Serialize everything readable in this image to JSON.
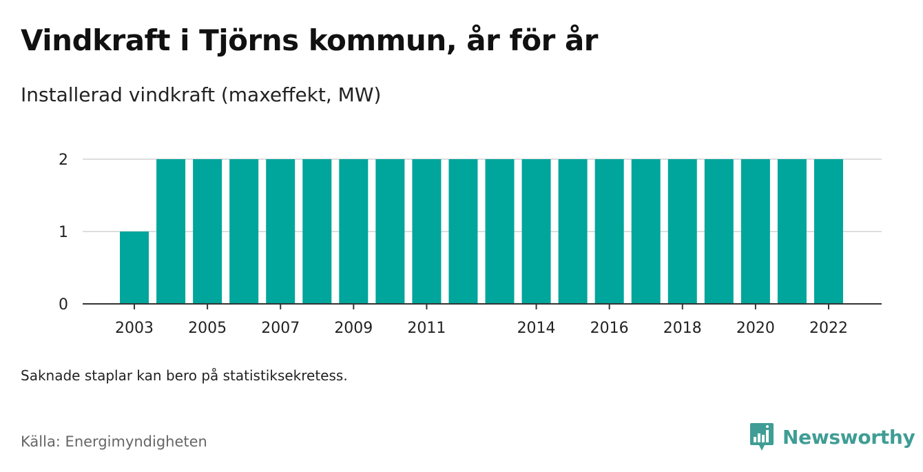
{
  "title": "Vindkraft i Tjörns kommun, år för år",
  "subtitle": "Installerad vindkraft (maxeffekt, MW)",
  "note": "Saknade staplar kan bero på statistiksekretess.",
  "source": "Källa: Energimyndigheten",
  "brand": {
    "name": "Newsworthy",
    "icon": "newsworthy-logo-icon",
    "color": "#3f9d95"
  },
  "colors": {
    "bar": "#00a59b",
    "grid": "#dddddd",
    "axis": "#333333"
  },
  "chart_data": {
    "type": "bar",
    "categories": [
      "2003",
      "2004",
      "2005",
      "2006",
      "2007",
      "2008",
      "2009",
      "2010",
      "2011",
      "2012",
      "2013",
      "2014",
      "2015",
      "2016",
      "2017",
      "2018",
      "2019",
      "2020",
      "2021",
      "2022"
    ],
    "values": [
      1,
      2,
      2,
      2,
      2,
      2,
      2,
      2,
      2,
      2,
      2,
      2,
      2,
      2,
      2,
      2,
      2,
      2,
      2,
      2
    ],
    "x_tick_labels": [
      "2003",
      "2005",
      "2007",
      "2009",
      "2011",
      "2014",
      "2016",
      "2018",
      "2020",
      "2022"
    ],
    "y_ticks": [
      0,
      1,
      2
    ],
    "ylim": [
      0,
      2
    ],
    "grid": true,
    "xlabel": "",
    "ylabel": ""
  }
}
